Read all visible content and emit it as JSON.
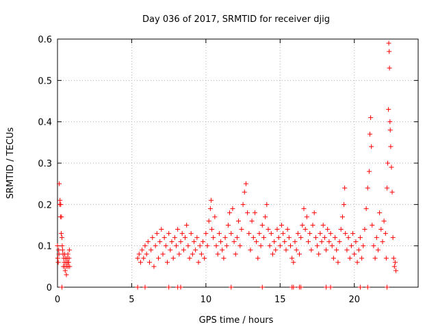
{
  "chart_data": {
    "type": "scatter",
    "title": "Day 036 of 2017, SRMTID for receiver djig",
    "xlabel": "GPS time / hours",
    "ylabel": "SRMTID / TECUs",
    "xlim": [
      0,
      24.3
    ],
    "ylim": [
      0,
      0.6
    ],
    "xticks": [
      0,
      5,
      10,
      15,
      20
    ],
    "xtick_labels": [
      "0",
      "5",
      "10",
      "15",
      "20"
    ],
    "yticks": [
      0,
      0.1,
      0.2,
      0.3,
      0.4,
      0.5,
      0.6
    ],
    "ytick_labels": [
      "0",
      "0.1",
      "0.2",
      "0.3",
      "0.4",
      "0.5",
      "0.6"
    ],
    "grid": true,
    "marker": "+",
    "series": [
      {
        "name": "SRMTID",
        "color": "#ff0000",
        "points": [
          [
            0.0,
            0.1
          ],
          [
            0.02,
            0.07
          ],
          [
            0.05,
            0.06
          ],
          [
            0.08,
            0.09
          ],
          [
            0.1,
            0.08
          ],
          [
            0.12,
            0.25
          ],
          [
            0.15,
            0.2
          ],
          [
            0.17,
            0.21
          ],
          [
            0.2,
            0.17
          ],
          [
            0.22,
            0.2
          ],
          [
            0.25,
            0.13
          ],
          [
            0.27,
            0.17
          ],
          [
            0.3,
            0.12
          ],
          [
            0.32,
            0.1
          ],
          [
            0.35,
            0.09
          ],
          [
            0.37,
            0.08
          ],
          [
            0.4,
            0.05
          ],
          [
            0.42,
            0.07
          ],
          [
            0.45,
            0.06
          ],
          [
            0.48,
            0.08
          ],
          [
            0.5,
            0.05
          ],
          [
            0.52,
            0.04
          ],
          [
            0.55,
            0.07
          ],
          [
            0.57,
            0.06
          ],
          [
            0.6,
            0.03
          ],
          [
            0.62,
            0.05
          ],
          [
            0.65,
            0.07
          ],
          [
            0.68,
            0.06
          ],
          [
            0.7,
            0.08
          ],
          [
            0.72,
            0.05
          ],
          [
            0.75,
            0.06
          ],
          [
            0.78,
            0.07
          ],
          [
            0.8,
            0.09
          ],
          [
            0.82,
            0.05
          ],
          [
            5.4,
            0.07
          ],
          [
            5.5,
            0.08
          ],
          [
            5.6,
            0.06
          ],
          [
            5.7,
            0.09
          ],
          [
            5.8,
            0.07
          ],
          [
            5.9,
            0.1
          ],
          [
            6.0,
            0.08
          ],
          [
            6.1,
            0.11
          ],
          [
            6.2,
            0.06
          ],
          [
            6.3,
            0.09
          ],
          [
            6.4,
            0.12
          ],
          [
            6.5,
            0.05
          ],
          [
            6.6,
            0.1
          ],
          [
            6.7,
            0.13
          ],
          [
            6.8,
            0.07
          ],
          [
            6.9,
            0.11
          ],
          [
            7.0,
            0.14
          ],
          [
            7.1,
            0.08
          ],
          [
            7.2,
            0.12
          ],
          [
            7.3,
            0.1
          ],
          [
            7.4,
            0.06
          ],
          [
            7.5,
            0.13
          ],
          [
            7.6,
            0.09
          ],
          [
            7.7,
            0.11
          ],
          [
            7.8,
            0.07
          ],
          [
            7.9,
            0.12
          ],
          [
            8.0,
            0.1
          ],
          [
            8.1,
            0.14
          ],
          [
            8.2,
            0.08
          ],
          [
            8.3,
            0.11
          ],
          [
            8.4,
            0.13
          ],
          [
            8.5,
            0.09
          ],
          [
            8.6,
            0.12
          ],
          [
            8.7,
            0.15
          ],
          [
            8.8,
            0.1
          ],
          [
            8.9,
            0.07
          ],
          [
            9.0,
            0.13
          ],
          [
            9.1,
            0.08
          ],
          [
            9.2,
            0.11
          ],
          [
            9.3,
            0.09
          ],
          [
            9.4,
            0.12
          ],
          [
            9.5,
            0.06
          ],
          [
            9.6,
            0.1
          ],
          [
            9.7,
            0.08
          ],
          [
            9.8,
            0.11
          ],
          [
            9.9,
            0.07
          ],
          [
            10.0,
            0.13
          ],
          [
            10.1,
            0.1
          ],
          [
            10.2,
            0.16
          ],
          [
            10.3,
            0.19
          ],
          [
            10.35,
            0.21
          ],
          [
            10.4,
            0.14
          ],
          [
            10.5,
            0.12
          ],
          [
            10.6,
            0.17
          ],
          [
            10.7,
            0.1
          ],
          [
            10.8,
            0.08
          ],
          [
            10.9,
            0.13
          ],
          [
            11.0,
            0.11
          ],
          [
            11.1,
            0.09
          ],
          [
            11.2,
            0.07
          ],
          [
            11.3,
            0.12
          ],
          [
            11.4,
            0.1
          ],
          [
            11.5,
            0.15
          ],
          [
            11.6,
            0.18
          ],
          [
            11.7,
            0.13
          ],
          [
            11.8,
            0.19
          ],
          [
            11.9,
            0.11
          ],
          [
            12.0,
            0.08
          ],
          [
            12.1,
            0.12
          ],
          [
            12.2,
            0.16
          ],
          [
            12.3,
            0.1
          ],
          [
            12.4,
            0.14
          ],
          [
            12.5,
            0.2
          ],
          [
            12.6,
            0.23
          ],
          [
            12.7,
            0.25
          ],
          [
            12.8,
            0.18
          ],
          [
            12.9,
            0.13
          ],
          [
            13.0,
            0.09
          ],
          [
            13.1,
            0.16
          ],
          [
            13.2,
            0.12
          ],
          [
            13.3,
            0.18
          ],
          [
            13.4,
            0.11
          ],
          [
            13.5,
            0.07
          ],
          [
            13.6,
            0.13
          ],
          [
            13.7,
            0.1
          ],
          [
            13.8,
            0.15
          ],
          [
            13.9,
            0.12
          ],
          [
            14.0,
            0.17
          ],
          [
            14.1,
            0.2
          ],
          [
            14.2,
            0.14
          ],
          [
            14.3,
            0.1
          ],
          [
            14.4,
            0.13
          ],
          [
            14.5,
            0.08
          ],
          [
            14.6,
            0.11
          ],
          [
            14.7,
            0.09
          ],
          [
            14.8,
            0.14
          ],
          [
            14.9,
            0.12
          ],
          [
            15.0,
            0.1
          ],
          [
            15.1,
            0.15
          ],
          [
            15.2,
            0.13
          ],
          [
            15.3,
            0.11
          ],
          [
            15.4,
            0.09
          ],
          [
            15.5,
            0.14
          ],
          [
            15.6,
            0.12
          ],
          [
            15.7,
            0.1
          ],
          [
            15.8,
            0.07
          ],
          [
            15.9,
            0.06
          ],
          [
            16.0,
            0.11
          ],
          [
            16.1,
            0.09
          ],
          [
            16.2,
            0.13
          ],
          [
            16.3,
            0.08
          ],
          [
            16.4,
            0.12
          ],
          [
            16.5,
            0.15
          ],
          [
            16.6,
            0.19
          ],
          [
            16.7,
            0.14
          ],
          [
            16.8,
            0.17
          ],
          [
            16.9,
            0.11
          ],
          [
            17.0,
            0.13
          ],
          [
            17.1,
            0.09
          ],
          [
            17.2,
            0.15
          ],
          [
            17.3,
            0.18
          ],
          [
            17.4,
            0.12
          ],
          [
            17.5,
            0.1
          ],
          [
            17.6,
            0.08
          ],
          [
            17.7,
            0.13
          ],
          [
            17.8,
            0.11
          ],
          [
            17.9,
            0.15
          ],
          [
            18.0,
            0.12
          ],
          [
            18.1,
            0.09
          ],
          [
            18.2,
            0.14
          ],
          [
            18.3,
            0.11
          ],
          [
            18.4,
            0.13
          ],
          [
            18.5,
            0.1
          ],
          [
            18.6,
            0.07
          ],
          [
            18.7,
            0.12
          ],
          [
            18.8,
            0.09
          ],
          [
            18.9,
            0.06
          ],
          [
            19.0,
            0.11
          ],
          [
            19.1,
            0.14
          ],
          [
            19.2,
            0.17
          ],
          [
            19.3,
            0.2
          ],
          [
            19.35,
            0.24
          ],
          [
            19.4,
            0.13
          ],
          [
            19.5,
            0.09
          ],
          [
            19.6,
            0.12
          ],
          [
            19.7,
            0.07
          ],
          [
            19.8,
            0.1
          ],
          [
            19.9,
            0.13
          ],
          [
            20.0,
            0.08
          ],
          [
            20.1,
            0.11
          ],
          [
            20.2,
            0.06
          ],
          [
            20.3,
            0.09
          ],
          [
            20.4,
            0.12
          ],
          [
            20.5,
            0.07
          ],
          [
            20.6,
            0.1
          ],
          [
            20.7,
            0.14
          ],
          [
            20.8,
            0.19
          ],
          [
            20.9,
            0.24
          ],
          [
            21.0,
            0.28
          ],
          [
            21.05,
            0.37
          ],
          [
            21.1,
            0.41
          ],
          [
            21.15,
            0.34
          ],
          [
            21.2,
            0.15
          ],
          [
            21.3,
            0.1
          ],
          [
            21.4,
            0.07
          ],
          [
            21.5,
            0.12
          ],
          [
            21.6,
            0.09
          ],
          [
            21.7,
            0.18
          ],
          [
            21.8,
            0.14
          ],
          [
            21.9,
            0.11
          ],
          [
            22.0,
            0.16
          ],
          [
            22.1,
            0.13
          ],
          [
            22.15,
            0.07
          ],
          [
            22.2,
            0.24
          ],
          [
            22.25,
            0.3
          ],
          [
            22.3,
            0.43
          ],
          [
            22.32,
            0.59
          ],
          [
            22.35,
            0.57
          ],
          [
            22.37,
            0.53
          ],
          [
            22.4,
            0.4
          ],
          [
            22.42,
            0.38
          ],
          [
            22.45,
            0.34
          ],
          [
            22.5,
            0.29
          ],
          [
            22.55,
            0.23
          ],
          [
            22.6,
            0.12
          ],
          [
            22.65,
            0.07
          ],
          [
            22.7,
            0.05
          ],
          [
            22.75,
            0.06
          ],
          [
            22.8,
            0.04
          ],
          [
            0.3,
            0.0
          ],
          [
            5.4,
            0.0
          ],
          [
            5.9,
            0.0
          ],
          [
            7.5,
            0.0
          ],
          [
            8.1,
            0.0
          ],
          [
            8.3,
            0.0
          ],
          [
            11.7,
            0.0
          ],
          [
            13.8,
            0.0
          ],
          [
            15.8,
            0.0
          ],
          [
            15.9,
            0.0
          ],
          [
            16.3,
            0.0
          ],
          [
            16.4,
            0.0
          ],
          [
            18.1,
            0.0
          ],
          [
            18.4,
            0.0
          ],
          [
            20.4,
            0.0
          ],
          [
            20.9,
            0.0
          ],
          [
            22.2,
            0.0
          ]
        ]
      }
    ]
  }
}
